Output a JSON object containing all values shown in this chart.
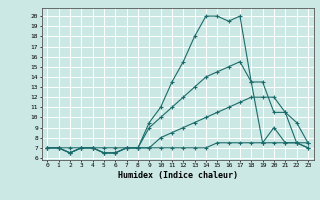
{
  "xlabel": "Humidex (Indice chaleur)",
  "bg_color": "#cce8e4",
  "grid_color": "#ffffff",
  "line_color": "#1a6b6b",
  "x_ticks": [
    0,
    1,
    2,
    3,
    4,
    5,
    6,
    7,
    8,
    9,
    10,
    11,
    12,
    13,
    14,
    15,
    16,
    17,
    18,
    19,
    20,
    21,
    22,
    23
  ],
  "y_ticks": [
    6,
    7,
    8,
    9,
    10,
    11,
    12,
    13,
    14,
    15,
    16,
    17,
    18,
    19,
    20
  ],
  "xlim": [
    -0.5,
    23.5
  ],
  "ylim": [
    5.8,
    20.8
  ],
  "lines": [
    {
      "x": [
        0,
        1,
        2,
        3,
        4,
        5,
        6,
        7,
        8,
        9,
        10,
        11,
        12,
        13,
        14,
        15,
        16,
        17,
        18,
        19,
        20,
        21,
        22,
        23
      ],
      "y": [
        7,
        7,
        6.5,
        7,
        7,
        6.5,
        6.5,
        7,
        7,
        9.5,
        11,
        13.5,
        15.5,
        18,
        20,
        20,
        19.5,
        20,
        13.5,
        7.5,
        9,
        7.5,
        7.5,
        7.0
      ]
    },
    {
      "x": [
        0,
        1,
        2,
        3,
        4,
        5,
        6,
        7,
        8,
        9,
        10,
        11,
        12,
        13,
        14,
        15,
        16,
        17,
        18,
        19,
        20,
        21,
        22,
        23
      ],
      "y": [
        7,
        7,
        6.5,
        7,
        7,
        6.5,
        6.5,
        7,
        7,
        9.0,
        10,
        11,
        12,
        13,
        14,
        14.5,
        15,
        15.5,
        13.5,
        13.5,
        10.5,
        10.5,
        7.5,
        7.0
      ]
    },
    {
      "x": [
        0,
        1,
        2,
        3,
        4,
        5,
        6,
        7,
        8,
        9,
        10,
        11,
        12,
        13,
        14,
        15,
        16,
        17,
        18,
        19,
        20,
        21,
        22,
        23
      ],
      "y": [
        7,
        7,
        6.5,
        7,
        7,
        6.5,
        6.5,
        7,
        7,
        7,
        8,
        8.5,
        9,
        9.5,
        10,
        10.5,
        11,
        11.5,
        12,
        12,
        12,
        10.5,
        9.5,
        7.5
      ]
    },
    {
      "x": [
        0,
        1,
        2,
        3,
        4,
        5,
        6,
        7,
        8,
        9,
        10,
        11,
        12,
        13,
        14,
        15,
        16,
        17,
        18,
        19,
        20,
        21,
        22,
        23
      ],
      "y": [
        7,
        7,
        7,
        7,
        7,
        7,
        7,
        7,
        7,
        7,
        7,
        7,
        7,
        7,
        7,
        7.5,
        7.5,
        7.5,
        7.5,
        7.5,
        7.5,
        7.5,
        7.5,
        7.5
      ]
    }
  ]
}
